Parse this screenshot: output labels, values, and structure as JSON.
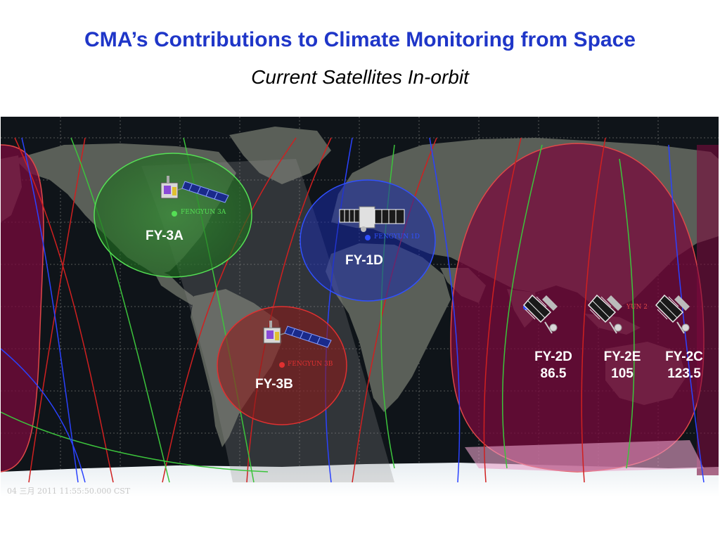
{
  "header": {
    "title": "CMA’s Contributions to Climate Monitoring from Space",
    "subtitle": "Current Satellites In-orbit"
  },
  "satellites": {
    "fy3a": {
      "label": "FY-3A",
      "map_tag": "FENGYUN 3A",
      "color": "#55e055"
    },
    "fy3b": {
      "label": "FY-3B",
      "map_tag": "FENGYUN 3B",
      "color": "#e03030"
    },
    "fy1d": {
      "label": "FY-1D",
      "map_tag": "FENGYUN 1D",
      "color": "#3050ff"
    },
    "fy2d": {
      "label": "FY-2D",
      "longitude": "86.5"
    },
    "fy2e": {
      "label": "FY-2E",
      "longitude": "105"
    },
    "fy2c": {
      "label": "FY-2C",
      "longitude": "123.5"
    }
  },
  "map_tags": {
    "fy2_tag": "YUN 2"
  },
  "status_bar": {
    "timestamp": "04 三月 2011 11:55:50.000 CST"
  },
  "colors": {
    "title": "#1f36c8",
    "ocean": "#0f1419",
    "land": "#5a5f58",
    "geo_coverage": "#7a0a3c",
    "geo_edge": "#e04848"
  }
}
